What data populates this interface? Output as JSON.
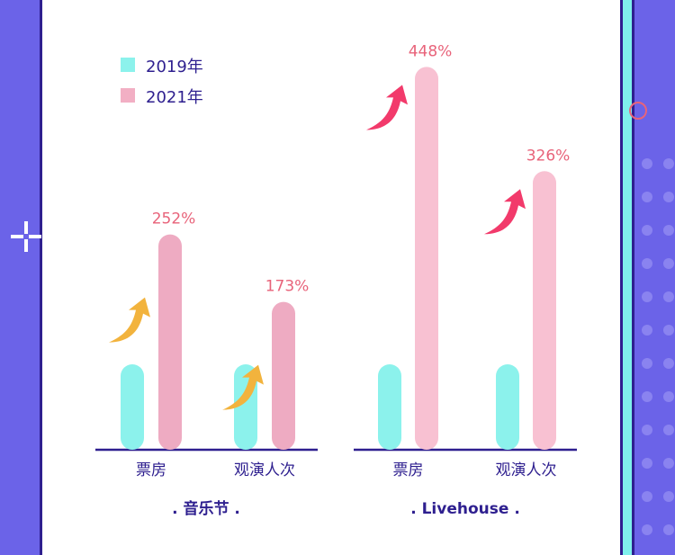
{
  "legend": [
    {
      "label": "2019年",
      "color": "#8CF2EC"
    },
    {
      "label": "2021年",
      "color": "#F2AFC4"
    }
  ],
  "chart_data": {
    "type": "bar",
    "series": [
      {
        "name": "2019年",
        "values": [
          100,
          100,
          100,
          100
        ]
      },
      {
        "name": "2021年",
        "values": [
          252,
          173,
          448,
          326
        ]
      }
    ],
    "groups": [
      {
        "name": ". 音乐节 .",
        "categories": [
          "票房",
          "观演人次"
        ],
        "growth_labels": [
          "252%",
          "173%"
        ],
        "colors_2021": "#EEABC2",
        "arrow_color": "#F2B33D"
      },
      {
        "name": ". Livehouse .",
        "categories": [
          "票房",
          "观演人次"
        ],
        "growth_labels": [
          "448%",
          "326%"
        ],
        "colors_2021": "#F8C1D2",
        "arrow_color": "#F23A6B"
      }
    ],
    "label_color": "#E8637A",
    "axis_color": "#2E1F8F"
  }
}
